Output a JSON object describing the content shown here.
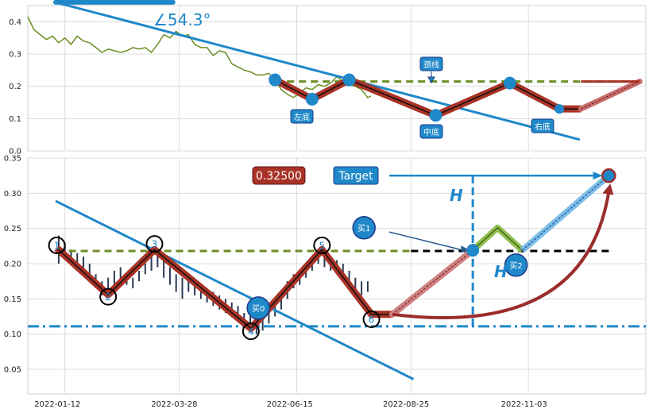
{
  "chart_data": [
    {
      "type": "line",
      "ylim": [
        0.0,
        0.45
      ],
      "yticks": [
        "0.0",
        "0.1",
        "0.2",
        "0.3",
        "0.4"
      ],
      "angle_label": "∠54.3°",
      "annotations": {
        "neckline": "颈线",
        "left_bottom": "左底",
        "middle_bottom": "中底",
        "right_bottom": "右底"
      },
      "price_series": [
        [
          0.0,
          0.415
        ],
        [
          0.01,
          0.375
        ],
        [
          0.02,
          0.36
        ],
        [
          0.03,
          0.345
        ],
        [
          0.04,
          0.355
        ],
        [
          0.05,
          0.335
        ],
        [
          0.06,
          0.35
        ],
        [
          0.07,
          0.33
        ],
        [
          0.08,
          0.355
        ],
        [
          0.09,
          0.34
        ],
        [
          0.1,
          0.335
        ],
        [
          0.11,
          0.32
        ],
        [
          0.12,
          0.305
        ],
        [
          0.13,
          0.315
        ],
        [
          0.14,
          0.31
        ],
        [
          0.15,
          0.305
        ],
        [
          0.16,
          0.31
        ],
        [
          0.17,
          0.32
        ],
        [
          0.18,
          0.315
        ],
        [
          0.19,
          0.32
        ],
        [
          0.2,
          0.305
        ],
        [
          0.21,
          0.33
        ],
        [
          0.22,
          0.36
        ],
        [
          0.23,
          0.35
        ],
        [
          0.24,
          0.37
        ],
        [
          0.25,
          0.355
        ],
        [
          0.26,
          0.36
        ],
        [
          0.27,
          0.33
        ],
        [
          0.28,
          0.32
        ],
        [
          0.29,
          0.32
        ],
        [
          0.3,
          0.295
        ],
        [
          0.31,
          0.31
        ],
        [
          0.32,
          0.305
        ],
        [
          0.33,
          0.27
        ],
        [
          0.34,
          0.26
        ],
        [
          0.35,
          0.25
        ],
        [
          0.36,
          0.245
        ],
        [
          0.37,
          0.235
        ],
        [
          0.38,
          0.235
        ],
        [
          0.39,
          0.24
        ],
        [
          0.4,
          0.22
        ],
        [
          0.41,
          0.19
        ],
        [
          0.42,
          0.175
        ],
        [
          0.43,
          0.165
        ],
        [
          0.44,
          0.18
        ],
        [
          0.45,
          0.195
        ],
        [
          0.46,
          0.19
        ],
        [
          0.47,
          0.205
        ],
        [
          0.48,
          0.2
        ],
        [
          0.49,
          0.21
        ],
        [
          0.5,
          0.23
        ],
        [
          0.51,
          0.215
        ],
        [
          0.52,
          0.205
        ],
        [
          0.53,
          0.2
        ],
        [
          0.54,
          0.19
        ],
        [
          0.55,
          0.165
        ],
        [
          0.555,
          0.17
        ]
      ],
      "pattern_line": [
        [
          0.4,
          0.22
        ],
        [
          0.46,
          0.16
        ],
        [
          0.52,
          0.22
        ],
        [
          0.66,
          0.11
        ],
        [
          0.78,
          0.21
        ],
        [
          0.86,
          0.13
        ],
        [
          0.895,
          0.13
        ]
      ],
      "projection_line": [
        [
          0.895,
          0.13
        ],
        [
          0.99,
          0.215
        ]
      ],
      "pattern_points": [
        [
          0.4,
          0.22
        ],
        [
          0.46,
          0.16
        ],
        [
          0.52,
          0.22
        ],
        [
          0.66,
          0.11
        ],
        [
          0.78,
          0.21
        ],
        [
          0.86,
          0.13
        ]
      ],
      "neckline_y": 0.215,
      "neckline_x": [
        0.4,
        0.99
      ],
      "trend_line": [
        [
          0.045,
          0.46
        ],
        [
          0.893,
          0.035
        ]
      ],
      "slope_marker": [
        [
          0.045,
          0.46
        ],
        [
          0.235,
          0.46
        ]
      ],
      "colors": {
        "price": "#6b8e23",
        "pattern": "#a93226",
        "trend": "#1f88c9",
        "neckline": "#6b8e23"
      }
    },
    {
      "type": "line",
      "ylim": [
        0.015,
        0.35
      ],
      "yticks": [
        "0.05",
        "0.10",
        "0.15",
        "0.20",
        "0.25",
        "0.30",
        "0.35"
      ],
      "x_tick_labels": [
        "2022-01-12",
        "2022-03-28",
        "2022-06-15",
        "2022-08-25",
        "2022-11-03"
      ],
      "value_box": "0.32500",
      "target_label": "Target",
      "h_label_1": "H",
      "h_label_2": "H",
      "buy_labels": [
        "买0",
        "买1",
        "买2"
      ],
      "pivot_labels": [
        "1",
        "2",
        "3",
        "4",
        "5",
        "6"
      ],
      "candles": [
        [
          0.05,
          0.24,
          0.2
        ],
        [
          0.06,
          0.23,
          0.205
        ],
        [
          0.07,
          0.22,
          0.2
        ],
        [
          0.08,
          0.215,
          0.195
        ],
        [
          0.09,
          0.21,
          0.185
        ],
        [
          0.1,
          0.2,
          0.175
        ],
        [
          0.11,
          0.185,
          0.165
        ],
        [
          0.12,
          0.175,
          0.155
        ],
        [
          0.13,
          0.18,
          0.165
        ],
        [
          0.14,
          0.19,
          0.17
        ],
        [
          0.15,
          0.195,
          0.175
        ],
        [
          0.16,
          0.185,
          0.17
        ],
        [
          0.17,
          0.18,
          0.165
        ],
        [
          0.18,
          0.19,
          0.175
        ],
        [
          0.19,
          0.2,
          0.185
        ],
        [
          0.2,
          0.21,
          0.19
        ],
        [
          0.21,
          0.22,
          0.195
        ],
        [
          0.22,
          0.205,
          0.18
        ],
        [
          0.23,
          0.195,
          0.17
        ],
        [
          0.24,
          0.185,
          0.16
        ],
        [
          0.25,
          0.18,
          0.15
        ],
        [
          0.26,
          0.185,
          0.16
        ],
        [
          0.27,
          0.175,
          0.155
        ],
        [
          0.28,
          0.17,
          0.15
        ],
        [
          0.29,
          0.165,
          0.145
        ],
        [
          0.3,
          0.16,
          0.14
        ],
        [
          0.31,
          0.155,
          0.135
        ],
        [
          0.32,
          0.15,
          0.13
        ],
        [
          0.33,
          0.145,
          0.125
        ],
        [
          0.34,
          0.14,
          0.12
        ],
        [
          0.35,
          0.13,
          0.112
        ],
        [
          0.36,
          0.125,
          0.108
        ],
        [
          0.37,
          0.12,
          0.1
        ],
        [
          0.38,
          0.125,
          0.105
        ],
        [
          0.39,
          0.135,
          0.115
        ],
        [
          0.4,
          0.145,
          0.125
        ],
        [
          0.41,
          0.16,
          0.135
        ],
        [
          0.42,
          0.175,
          0.15
        ],
        [
          0.43,
          0.185,
          0.165
        ],
        [
          0.44,
          0.19,
          0.17
        ],
        [
          0.45,
          0.2,
          0.18
        ],
        [
          0.46,
          0.21,
          0.19
        ],
        [
          0.47,
          0.22,
          0.2
        ],
        [
          0.48,
          0.215,
          0.195
        ],
        [
          0.49,
          0.21,
          0.19
        ],
        [
          0.5,
          0.205,
          0.185
        ],
        [
          0.51,
          0.2,
          0.175
        ],
        [
          0.52,
          0.19,
          0.165
        ],
        [
          0.53,
          0.18,
          0.16
        ],
        [
          0.54,
          0.175,
          0.155
        ],
        [
          0.55,
          0.175,
          0.16
        ]
      ],
      "zigzag": [
        [
          0.047,
          0.222
        ],
        [
          0.13,
          0.156
        ],
        [
          0.205,
          0.22
        ],
        [
          0.361,
          0.108
        ],
        [
          0.476,
          0.22
        ],
        [
          0.556,
          0.128
        ],
        [
          0.59,
          0.128
        ]
      ],
      "pivot_points": [
        [
          0.047,
          0.226
        ],
        [
          0.13,
          0.153
        ],
        [
          0.205,
          0.228
        ],
        [
          0.361,
          0.104
        ],
        [
          0.476,
          0.226
        ],
        [
          0.556,
          0.121
        ]
      ],
      "buy_points": [
        [
          0.373,
          0.137
        ],
        [
          0.544,
          0.251
        ],
        [
          0.79,
          0.198
        ]
      ],
      "projection_up": [
        [
          0.59,
          0.128
        ],
        [
          0.72,
          0.219
        ]
      ],
      "projection_zigzag": [
        [
          0.72,
          0.219
        ],
        [
          0.76,
          0.251
        ],
        [
          0.8,
          0.219
        ],
        [
          0.94,
          0.325
        ]
      ],
      "neckline_green": {
        "y": 0.218,
        "x": [
          0.047,
          0.62
        ]
      },
      "neckline_black": {
        "y": 0.218,
        "x": [
          0.62,
          0.94
        ]
      },
      "support_line": {
        "y": 0.111,
        "x": [
          0.0,
          1.0
        ]
      },
      "measure_line_x": 0.72,
      "measure_line_y": [
        0.111,
        0.325
      ],
      "downtrend_line": [
        [
          0.045,
          0.289
        ],
        [
          0.624,
          0.036
        ]
      ],
      "target_arrow": [
        [
          0.585,
          0.325
        ],
        [
          0.93,
          0.325
        ]
      ],
      "target_point": [
        0.94,
        0.325
      ],
      "curved_arrow": [
        [
          0.59,
          0.128
        ],
        [
          0.94,
          0.318
        ]
      ],
      "buy1_arrow": [
        [
          0.585,
          0.245
        ],
        [
          0.715,
          0.219
        ]
      ],
      "colors": {
        "candle": "#2b3a55",
        "zigzag": "#a93226",
        "trend": "#1f88c9",
        "neckline": "#6b8e23",
        "target": "#1f88c9",
        "valuebox": "#a93226"
      }
    }
  ]
}
